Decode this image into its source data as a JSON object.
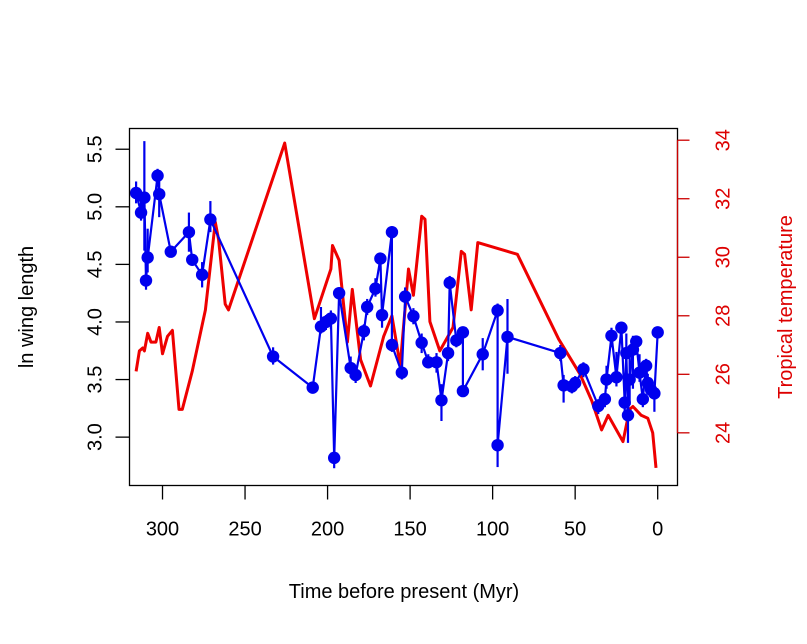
{
  "chart_data": {
    "type": "line",
    "title": "",
    "xlabel": "Time before present (Myr)",
    "ylabel": "ln wing length",
    "y2label": "Tropical temperature",
    "xlim": [
      320,
      -12
    ],
    "ylim": [
      2.58,
      5.68
    ],
    "y2lim": [
      22.2,
      34.4
    ],
    "x_reversed": true,
    "grid": false,
    "legend": "none",
    "x_ticks": [
      300,
      250,
      200,
      150,
      100,
      50,
      0
    ],
    "x_tick_labels": [
      "300",
      "250",
      "200",
      "150",
      "100",
      "50",
      "0"
    ],
    "y_ticks": [
      3.0,
      3.5,
      4.0,
      4.5,
      5.0,
      5.5
    ],
    "y_tick_labels": [
      "3.0",
      "3.5",
      "4.0",
      "4.5",
      "5.0",
      "5.5"
    ],
    "y2_ticks": [
      24,
      26,
      28,
      30,
      32,
      34
    ],
    "y2_tick_labels": [
      "24",
      "26",
      "28",
      "30",
      "32",
      "34"
    ],
    "colors": {
      "wing": "#0000ee",
      "temperature": "#ee0000",
      "axis": "#000000",
      "y2_axis": "#cc0000"
    },
    "series": [
      {
        "name": "ln wing length",
        "axis": "left",
        "style": "line+points+errorbars",
        "points": [
          {
            "x": 316,
            "y": 5.12,
            "lo": 5.03,
            "hi": 5.22
          },
          {
            "x": 313,
            "y": 4.95,
            "lo": 4.88,
            "hi": 5.08
          },
          {
            "x": 311,
            "y": 5.08,
            "lo": 4.62,
            "hi": 5.57
          },
          {
            "x": 310,
            "y": 4.36,
            "lo": 4.28,
            "hi": 4.42
          },
          {
            "x": 309,
            "y": 4.56,
            "lo": 4.43,
            "hi": 4.81
          },
          {
            "x": 303,
            "y": 5.27,
            "lo": 5.18,
            "hi": 5.33
          },
          {
            "x": 302,
            "y": 5.11,
            "lo": 4.91,
            "hi": 5.24
          },
          {
            "x": 295,
            "y": 4.61,
            "lo": 4.56,
            "hi": 4.66
          },
          {
            "x": 284,
            "y": 4.78,
            "lo": 4.61,
            "hi": 4.95
          },
          {
            "x": 282,
            "y": 4.54,
            "lo": 4.5,
            "hi": 4.58
          },
          {
            "x": 276,
            "y": 4.41,
            "lo": 4.3,
            "hi": 4.52
          },
          {
            "x": 271,
            "y": 4.89,
            "lo": 4.78,
            "hi": 5.05
          },
          {
            "x": 233,
            "y": 3.7,
            "lo": 3.63,
            "hi": 3.78
          },
          {
            "x": 209,
            "y": 3.43,
            "lo": 3.4,
            "hi": 3.47
          },
          {
            "x": 204,
            "y": 3.96,
            "lo": 3.9,
            "hi": 4.13
          },
          {
            "x": 201,
            "y": 4.0,
            "lo": 3.93,
            "hi": 4.06
          },
          {
            "x": 198,
            "y": 4.03,
            "lo": 3.94,
            "hi": 4.1
          },
          {
            "x": 196,
            "y": 2.82,
            "lo": 2.73,
            "hi": 2.9
          },
          {
            "x": 193,
            "y": 4.25,
            "lo": 4.18,
            "hi": 4.3
          },
          {
            "x": 186,
            "y": 3.6,
            "lo": 3.52,
            "hi": 3.7
          },
          {
            "x": 183,
            "y": 3.54,
            "lo": 3.47,
            "hi": 3.6
          },
          {
            "x": 178,
            "y": 3.92,
            "lo": 3.84,
            "hi": 3.98
          },
          {
            "x": 176,
            "y": 4.13,
            "lo": 4.06,
            "hi": 4.2
          },
          {
            "x": 171,
            "y": 4.29,
            "lo": 4.22,
            "hi": 4.38
          },
          {
            "x": 168,
            "y": 4.55,
            "lo": 4.47,
            "hi": 4.6
          },
          {
            "x": 167,
            "y": 4.06,
            "lo": 3.95,
            "hi": 4.17
          },
          {
            "x": 161,
            "y": 4.78,
            "lo": 4.73,
            "hi": 4.83
          },
          {
            "x": 161,
            "y": 3.8,
            "lo": 3.74,
            "hi": 3.86
          },
          {
            "x": 155,
            "y": 3.56,
            "lo": 3.5,
            "hi": 3.62
          },
          {
            "x": 153,
            "y": 4.22,
            "lo": 4.12,
            "hi": 4.3
          },
          {
            "x": 148,
            "y": 4.05,
            "lo": 3.98,
            "hi": 4.12
          },
          {
            "x": 143,
            "y": 3.82,
            "lo": 3.73,
            "hi": 3.9
          },
          {
            "x": 139,
            "y": 3.65,
            "lo": 3.6,
            "hi": 3.72
          },
          {
            "x": 134,
            "y": 3.65,
            "lo": 3.56,
            "hi": 3.73
          },
          {
            "x": 131,
            "y": 3.32,
            "lo": 3.14,
            "hi": 3.46
          },
          {
            "x": 127,
            "y": 3.73,
            "lo": 3.66,
            "hi": 3.8
          },
          {
            "x": 126,
            "y": 4.34,
            "lo": 4.28,
            "hi": 4.4
          },
          {
            "x": 122,
            "y": 3.84,
            "lo": 3.78,
            "hi": 3.9
          },
          {
            "x": 118,
            "y": 3.91,
            "lo": 3.83,
            "hi": 3.96
          },
          {
            "x": 118,
            "y": 3.4,
            "lo": 3.35,
            "hi": 3.45
          },
          {
            "x": 106,
            "y": 3.72,
            "lo": 3.58,
            "hi": 3.86
          },
          {
            "x": 97,
            "y": 4.1,
            "lo": 4.04,
            "hi": 4.16
          },
          {
            "x": 97,
            "y": 2.93,
            "lo": 2.74,
            "hi": 3.0
          },
          {
            "x": 91,
            "y": 3.87,
            "lo": 3.55,
            "hi": 4.2
          },
          {
            "x": 59,
            "y": 3.73,
            "lo": 3.66,
            "hi": 3.8
          },
          {
            "x": 57,
            "y": 3.45,
            "lo": 3.3,
            "hi": 3.54
          },
          {
            "x": 52,
            "y": 3.44,
            "lo": 3.38,
            "hi": 3.5
          },
          {
            "x": 50,
            "y": 3.47,
            "lo": 3.41,
            "hi": 3.53
          },
          {
            "x": 45,
            "y": 3.59,
            "lo": 3.52,
            "hi": 3.65
          },
          {
            "x": 36,
            "y": 3.27,
            "lo": 3.2,
            "hi": 3.33
          },
          {
            "x": 32,
            "y": 3.33,
            "lo": 3.26,
            "hi": 3.38
          },
          {
            "x": 31,
            "y": 3.5,
            "lo": 3.42,
            "hi": 3.62
          },
          {
            "x": 28,
            "y": 3.88,
            "lo": 3.78,
            "hi": 3.95
          },
          {
            "x": 25,
            "y": 3.52,
            "lo": 3.44,
            "hi": 3.74
          },
          {
            "x": 22,
            "y": 3.95,
            "lo": 3.88,
            "hi": 3.99
          },
          {
            "x": 20,
            "y": 3.3,
            "lo": 3.2,
            "hi": 3.38
          },
          {
            "x": 19,
            "y": 3.73,
            "lo": 3.5,
            "hi": 3.9
          },
          {
            "x": 18,
            "y": 3.19,
            "lo": 2.95,
            "hi": 3.55
          },
          {
            "x": 17,
            "y": 3.5,
            "lo": 3.28,
            "hi": 3.76
          },
          {
            "x": 15,
            "y": 3.76,
            "lo": 3.42,
            "hi": 3.88
          },
          {
            "x": 13,
            "y": 3.83,
            "lo": 3.73,
            "hi": 3.88
          },
          {
            "x": 11,
            "y": 3.56,
            "lo": 3.48,
            "hi": 3.72
          },
          {
            "x": 9,
            "y": 3.33,
            "lo": 3.26,
            "hi": 3.4
          },
          {
            "x": 7,
            "y": 3.62,
            "lo": 3.55,
            "hi": 3.68
          },
          {
            "x": 6,
            "y": 3.47,
            "lo": 3.38,
            "hi": 3.55
          },
          {
            "x": 4,
            "y": 3.41,
            "lo": 3.34,
            "hi": 3.48
          },
          {
            "x": 2,
            "y": 3.38,
            "lo": 3.22,
            "hi": 3.45
          },
          {
            "x": 0,
            "y": 3.91,
            "lo": 3.86,
            "hi": 3.96
          }
        ]
      },
      {
        "name": "Tropical temperature",
        "axis": "right",
        "style": "line",
        "points": [
          {
            "x": 316,
            "y": 26.1
          },
          {
            "x": 314,
            "y": 26.8
          },
          {
            "x": 312,
            "y": 26.9
          },
          {
            "x": 311,
            "y": 26.8
          },
          {
            "x": 309,
            "y": 27.4
          },
          {
            "x": 307,
            "y": 27.1
          },
          {
            "x": 304,
            "y": 27.1
          },
          {
            "x": 302,
            "y": 27.6
          },
          {
            "x": 300,
            "y": 26.7
          },
          {
            "x": 297,
            "y": 27.3
          },
          {
            "x": 294,
            "y": 27.5
          },
          {
            "x": 290,
            "y": 24.8
          },
          {
            "x": 288,
            "y": 24.8
          },
          {
            "x": 282,
            "y": 26.1
          },
          {
            "x": 274,
            "y": 28.2
          },
          {
            "x": 268,
            "y": 31.2
          },
          {
            "x": 266,
            "y": 30.6
          },
          {
            "x": 262,
            "y": 28.4
          },
          {
            "x": 260,
            "y": 28.2
          },
          {
            "x": 226,
            "y": 33.9
          },
          {
            "x": 208,
            "y": 27.9
          },
          {
            "x": 198,
            "y": 29.6
          },
          {
            "x": 197,
            "y": 30.4
          },
          {
            "x": 193,
            "y": 29.9
          },
          {
            "x": 188,
            "y": 27.1
          },
          {
            "x": 185,
            "y": 28.9
          },
          {
            "x": 180,
            "y": 26.5
          },
          {
            "x": 174,
            "y": 25.6
          },
          {
            "x": 166,
            "y": 27.3
          },
          {
            "x": 161,
            "y": 28.0
          },
          {
            "x": 156,
            "y": 26.3
          },
          {
            "x": 151,
            "y": 29.6
          },
          {
            "x": 148,
            "y": 28.7
          },
          {
            "x": 143,
            "y": 31.4
          },
          {
            "x": 141,
            "y": 31.3
          },
          {
            "x": 138,
            "y": 27.8
          },
          {
            "x": 132,
            "y": 26.8
          },
          {
            "x": 124,
            "y": 27.6
          },
          {
            "x": 119,
            "y": 30.2
          },
          {
            "x": 117,
            "y": 30.1
          },
          {
            "x": 113,
            "y": 28.2
          },
          {
            "x": 109,
            "y": 30.5
          },
          {
            "x": 85,
            "y": 30.1
          },
          {
            "x": 60,
            "y": 27.2
          },
          {
            "x": 47,
            "y": 26.0
          },
          {
            "x": 40,
            "y": 25.1
          },
          {
            "x": 34,
            "y": 24.1
          },
          {
            "x": 30,
            "y": 24.6
          },
          {
            "x": 21,
            "y": 23.7
          },
          {
            "x": 17,
            "y": 24.8
          },
          {
            "x": 15,
            "y": 24.9
          },
          {
            "x": 10,
            "y": 24.6
          },
          {
            "x": 6,
            "y": 24.5
          },
          {
            "x": 3,
            "y": 24.0
          },
          {
            "x": 1,
            "y": 22.8
          }
        ]
      }
    ]
  }
}
